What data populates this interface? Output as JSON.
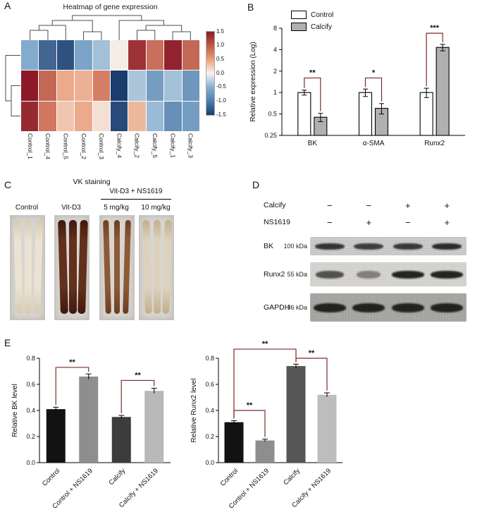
{
  "figure": {
    "panel_labels": [
      "A",
      "B",
      "C",
      "D",
      "E"
    ]
  },
  "colors": {
    "sig_bracket": "#7e2a2a",
    "calcify_bar": "#b0b0b0"
  },
  "chart_data": [
    {
      "id": "gene-heatmap",
      "type": "heatmap",
      "title": "Heatmap of gene expression",
      "columns": [
        "Control_1",
        "Control_4",
        "Control_5",
        "Control_2",
        "Control_3",
        "Calcify_4",
        "Calcify_2",
        "Calcify_5",
        "Calcify_1",
        "Calcify_3"
      ],
      "values": [
        [
          -0.7,
          -1.2,
          -1.35,
          -0.75,
          -0.5,
          0.05,
          1.35,
          0.95,
          1.45,
          1.0
        ],
        [
          1.5,
          1.0,
          0.55,
          0.5,
          0.85,
          -1.5,
          -0.45,
          -0.8,
          -0.5,
          -0.85
        ],
        [
          1.4,
          0.9,
          0.35,
          0.55,
          0.15,
          -1.4,
          0.45,
          -0.55,
          -0.9,
          -0.8
        ]
      ],
      "vmin": -1.5,
      "vmax": 1.5,
      "colorbar_ticks": [
        "1.5",
        "1.0",
        "0.5",
        "0.0",
        "-0.5",
        "-1.0",
        "-1.5"
      ]
    },
    {
      "id": "relative-expression",
      "type": "bar",
      "ylabel": "Relative expression (Log)",
      "yscale": "log2",
      "ylim": [
        0.25,
        8
      ],
      "yticks": [
        8,
        4,
        2,
        1,
        0.5,
        0.25
      ],
      "categories": [
        "BK",
        "α-SMA",
        "Runx2"
      ],
      "series": [
        {
          "name": "Control",
          "fill": "#ffffff",
          "values": [
            1,
            1,
            1
          ],
          "errors": [
            0.08,
            0.12,
            0.15
          ]
        },
        {
          "name": "Calcify",
          "fill": "#b0b0b0",
          "values": [
            0.45,
            0.6,
            4.3
          ],
          "errors": [
            0.06,
            0.1,
            0.45
          ]
        }
      ],
      "legend_position": "top-left",
      "significance": [
        {
          "category": 0,
          "stars": "**",
          "level": 1.6
        },
        {
          "category": 1,
          "stars": "*",
          "level": 1.6
        },
        {
          "category": 2,
          "stars": "***",
          "level": 6.8
        }
      ]
    },
    {
      "id": "relative-bk-level",
      "type": "bar",
      "ylabel": "Relative BK level",
      "ylim": [
        0,
        0.8
      ],
      "yticks": [
        0.0,
        0.2,
        0.4,
        0.6,
        0.8
      ],
      "categories": [
        "Control",
        "Control + NS1619",
        "Calcify",
        "Calcify + NS1619"
      ],
      "values": [
        0.41,
        0.66,
        0.35,
        0.55
      ],
      "errors": [
        0.015,
        0.02,
        0.012,
        0.02
      ],
      "bar_colors": [
        "#121212",
        "#8e8e8e",
        "#3c3c3c",
        "#b9b9b9"
      ],
      "significance": [
        {
          "from": 0,
          "to": 1,
          "level": 0.73,
          "stars": "**"
        },
        {
          "from": 2,
          "to": 3,
          "level": 0.63,
          "stars": "**"
        }
      ]
    },
    {
      "id": "relative-runx2-level",
      "type": "bar",
      "ylabel": "Relative Runx2 level",
      "ylim": [
        0,
        0.8
      ],
      "yticks": [
        0.0,
        0.2,
        0.4,
        0.6,
        0.8
      ],
      "categories": [
        "Control",
        "Control + NS1619",
        "Calcify",
        "Calcify + NS1619"
      ],
      "values": [
        0.31,
        0.17,
        0.74,
        0.52
      ],
      "errors": [
        0.012,
        0.01,
        0.015,
        0.015
      ],
      "bar_colors": [
        "#121212",
        "#8e8e8e",
        "#565656",
        "#bdbdbd"
      ],
      "significance": [
        {
          "from": 0,
          "to": 1,
          "level": 0.4,
          "stars": "**"
        },
        {
          "from": 0,
          "to": 2,
          "level": 0.87,
          "stars": "**"
        },
        {
          "from": 2,
          "to": 3,
          "level": 0.8,
          "stars": "**"
        }
      ]
    }
  ],
  "vk": {
    "title": "VK staining",
    "group_header": "Vit-D3 + NS1619",
    "panels": [
      {
        "label": "Control",
        "strip_color": "#eae3d3",
        "strip_edge": "#d6cbb2"
      },
      {
        "label": "Vit-D3",
        "strip_color": "#63301c",
        "strip_edge": "#40180d"
      },
      {
        "label": "5 mg/kg",
        "strip_color": "#8d5a36",
        "strip_edge": "#6b3d20"
      },
      {
        "label": "10 mg/kg",
        "strip_color": "#ddd2bd",
        "strip_edge": "#c2ae8c"
      }
    ]
  },
  "western": {
    "header_rows": [
      {
        "label": "Calcify",
        "signs": [
          "−",
          "−",
          "+",
          "+"
        ]
      },
      {
        "label": "NS1619",
        "signs": [
          "−",
          "+",
          "−",
          "+"
        ]
      }
    ],
    "blots": [
      {
        "name": "BK",
        "kda": "100 kDa",
        "bands": [
          0.85,
          0.8,
          0.82,
          0.9
        ],
        "band_widths": [
          42,
          42,
          42,
          42
        ]
      },
      {
        "name": "Runx2",
        "kda": "55 kDa",
        "bands": [
          0.7,
          0.45,
          0.95,
          0.95
        ],
        "band_widths": [
          40,
          34,
          46,
          46
        ]
      },
      {
        "name": "GAPDH",
        "kda": "36 kDa",
        "bands": [
          0.95,
          0.95,
          0.95,
          0.95
        ],
        "band_widths": [
          46,
          46,
          46,
          46
        ]
      }
    ]
  }
}
